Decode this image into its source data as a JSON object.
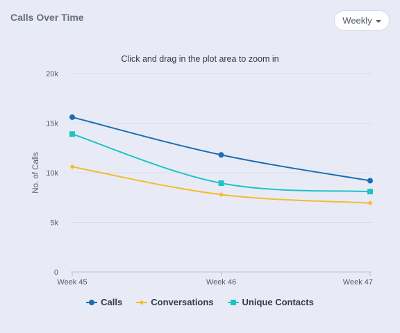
{
  "header": {
    "title": "Calls Over Time",
    "period_label": "Weekly"
  },
  "chart_data": {
    "type": "line",
    "subtitle": "Click and drag in the plot area to zoom in",
    "xlabel": "",
    "ylabel": "No. of Calls",
    "categories": [
      "Week 45",
      "Week 46",
      "Week 47"
    ],
    "ylim": [
      0,
      20000
    ],
    "yticks": [
      0,
      5000,
      10000,
      15000,
      20000
    ],
    "ytick_labels": [
      "0",
      "5k",
      "10k",
      "15k",
      "20k"
    ],
    "grid": true,
    "legend": "bottom",
    "series": [
      {
        "name": "Calls",
        "values": [
          15600,
          11800,
          9200
        ],
        "color": "#1a6cb3",
        "marker": "circle"
      },
      {
        "name": "Conversations",
        "values": [
          10600,
          7800,
          6950
        ],
        "color": "#f4bb30",
        "marker": "diamond"
      },
      {
        "name": "Unique Contacts",
        "values": [
          13900,
          8950,
          8100
        ],
        "color": "#1ec3c8",
        "marker": "square"
      }
    ]
  }
}
